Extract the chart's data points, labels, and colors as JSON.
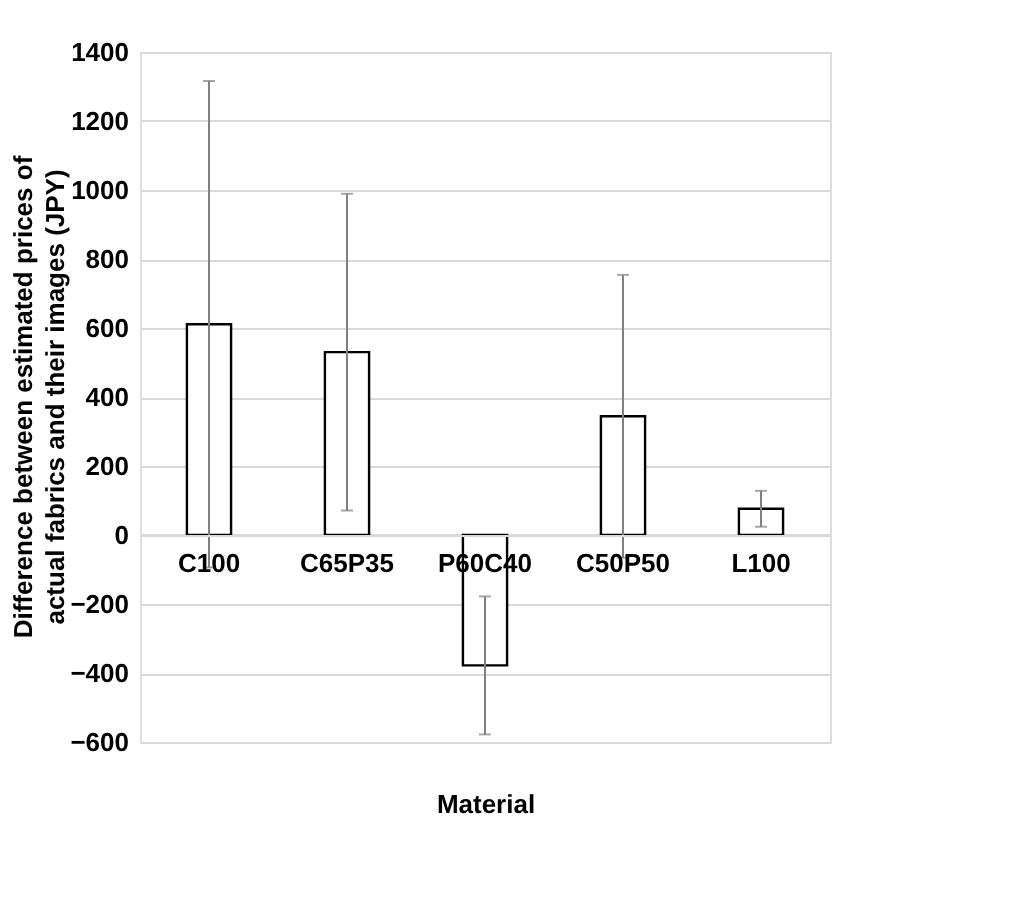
{
  "chart_data": {
    "type": "bar",
    "xlabel": "Material",
    "ylabel": "Difference between estimated prices of actual fabrics and their images (JPY)",
    "categories": [
      "C100",
      "C65P35",
      "P60C40",
      "C50P50",
      "L100"
    ],
    "values": [
      611,
      530,
      -378,
      344,
      76
    ],
    "errors": [
      705,
      459,
      200,
      410,
      52
    ],
    "color": "#ffffff",
    "ylim": [
      -600,
      1400
    ],
    "yticks": [
      -600,
      -400,
      -200,
      0,
      200,
      400,
      600,
      800,
      1000,
      1200,
      1400
    ],
    "grid": "y"
  }
}
